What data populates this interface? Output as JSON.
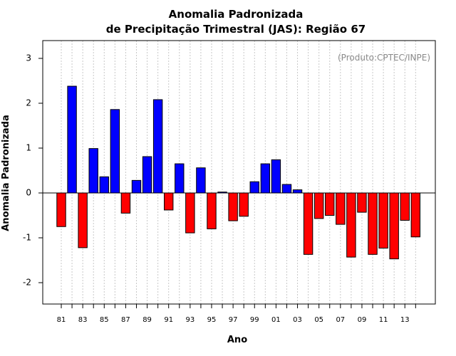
{
  "chart_data": {
    "type": "bar",
    "title": "Anomalia Padronizada",
    "subtitle": "de Precipitação Trimestral (JAS): Região 67",
    "xlabel": "Ano",
    "ylabel": "Anomalia Padronizada",
    "annotation": "(Produto:CPTEC/INPE)",
    "ylim": [
      -2.5,
      3.35
    ],
    "yticks": [
      -2,
      -1,
      0,
      1,
      2,
      3
    ],
    "grid": "vertical dotted",
    "categories": [
      "81",
      "82",
      "83",
      "84",
      "85",
      "86",
      "87",
      "88",
      "89",
      "90",
      "91",
      "92",
      "93",
      "94",
      "95",
      "96",
      "97",
      "98",
      "99",
      "00",
      "01",
      "02",
      "03",
      "04",
      "05",
      "06",
      "07",
      "08",
      "09",
      "10",
      "11",
      "12",
      "13",
      "14"
    ],
    "xtick_labels": [
      "81",
      "83",
      "85",
      "87",
      "89",
      "91",
      "93",
      "95",
      "97",
      "99",
      "01",
      "03",
      "05",
      "07",
      "09",
      "11",
      "13"
    ],
    "values": [
      -0.75,
      2.38,
      -1.22,
      0.99,
      0.36,
      1.86,
      -0.45,
      0.28,
      0.81,
      2.08,
      -0.38,
      0.65,
      -0.89,
      0.56,
      -0.8,
      0.02,
      -0.62,
      -0.52,
      0.25,
      0.65,
      0.74,
      0.19,
      0.07,
      -1.37,
      -0.57,
      -0.5,
      -0.7,
      -1.43,
      -0.43,
      -1.37,
      -1.23,
      -1.47,
      -0.61,
      -0.98
    ],
    "colors": {
      "positive": "#0000ff",
      "negative": "#ff0000"
    }
  }
}
